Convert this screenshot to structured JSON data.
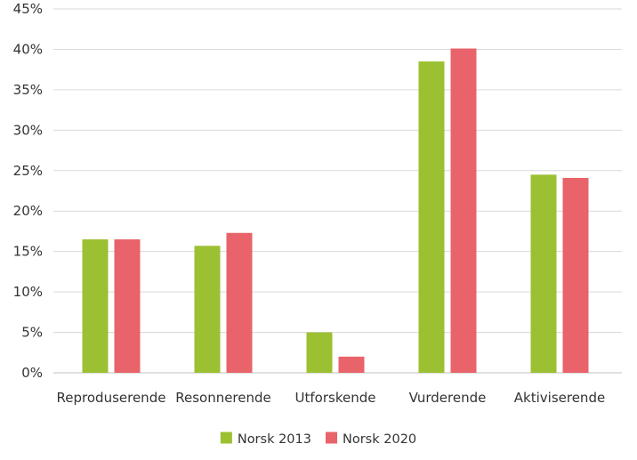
{
  "chart_data": {
    "type": "bar",
    "categories": [
      "Reproduserende",
      "Resonnerende",
      "Utforskende",
      "Vurderende",
      "Aktiviserende"
    ],
    "series": [
      {
        "name": "Norsk 2013",
        "values": [
          16.5,
          15.7,
          5.0,
          38.5,
          24.5
        ],
        "color": "#9BC031"
      },
      {
        "name": "Norsk 2020",
        "values": [
          16.5,
          17.3,
          2.0,
          40.1,
          24.1
        ],
        "color": "#E8636A"
      }
    ],
    "ylim": [
      0,
      45
    ],
    "yticks": [
      0,
      5,
      10,
      15,
      20,
      25,
      30,
      35,
      40,
      45
    ],
    "ytick_labels": [
      "0%",
      "5%",
      "10%",
      "15%",
      "20%",
      "25%",
      "30%",
      "35%",
      "40%",
      "45%"
    ],
    "grid": true,
    "legend_position": "bottom-center",
    "title": "",
    "xlabel": "",
    "ylabel": ""
  }
}
